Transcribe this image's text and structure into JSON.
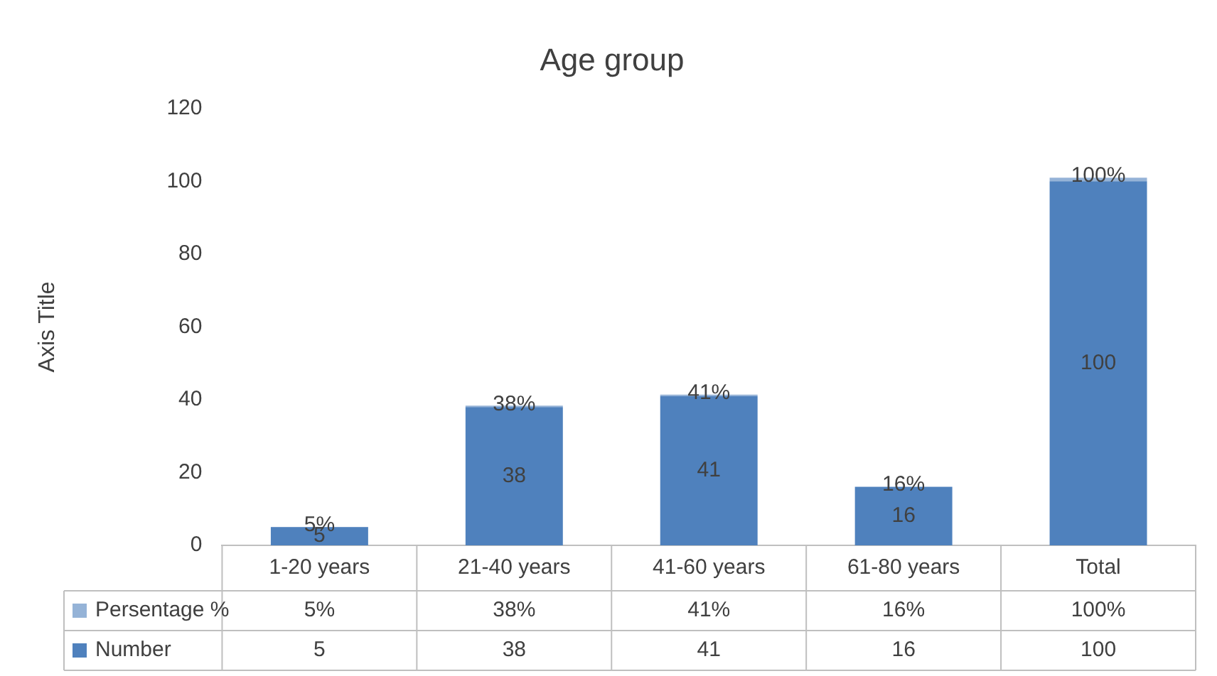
{
  "chart_data": {
    "type": "bar",
    "title": "Age group",
    "ylabel": "Axis Title",
    "categories": [
      "1-20 years",
      "21-40 years",
      "41-60 years",
      "61-80 years",
      "Total"
    ],
    "stacked": true,
    "legend": "bottom",
    "grid": false,
    "ylim": [
      0,
      120
    ],
    "yticks": [
      0,
      20,
      40,
      60,
      80,
      100,
      120
    ],
    "series": [
      {
        "name": "Number",
        "color": "#4f81bd",
        "values": [
          5,
          38,
          41,
          16,
          100
        ],
        "value_labels": [
          "5",
          "38",
          "41",
          "16",
          "100"
        ]
      },
      {
        "name": "Persentage %",
        "color": "#95b3d7",
        "values": [
          0.05,
          0.38,
          0.41,
          0.16,
          1
        ],
        "value_labels": [
          "5%",
          "38%",
          "41%",
          "16%",
          "100%"
        ]
      }
    ]
  }
}
